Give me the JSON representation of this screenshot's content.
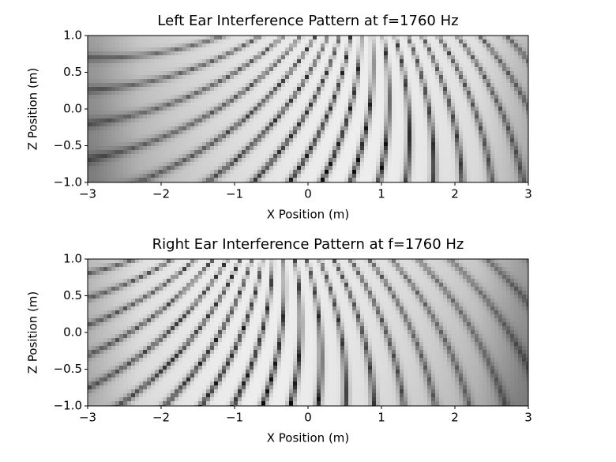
{
  "chart_data": [
    {
      "type": "image",
      "title": "Left Ear Interference Pattern at f=1760 Hz",
      "xlabel": "X Position (m)",
      "ylabel": "Z Position (m)",
      "xlim": [
        -3,
        3
      ],
      "ylim": [
        -1,
        1
      ],
      "xticks": [
        {
          "value": -3,
          "label": "−3"
        },
        {
          "value": -2,
          "label": "−2"
        },
        {
          "value": -1,
          "label": "−1"
        },
        0,
        1,
        2,
        3
      ],
      "yticks": [
        {
          "value": 1,
          "label": "1.0"
        },
        {
          "value": 0.5,
          "label": "0.5"
        },
        {
          "value": 0,
          "label": "0.0"
        },
        {
          "value": -0.5,
          "label": "−0.5"
        },
        {
          "value": -1,
          "label": "−1.0"
        }
      ],
      "colormap": "gray"
    },
    {
      "type": "image",
      "title": "Right Ear Interference Pattern at f=1760 Hz",
      "xlabel": "X Position (m)",
      "ylabel": "Z Position (m)",
      "xlim": [
        -3,
        3
      ],
      "ylim": [
        -1,
        1
      ],
      "xticks": [
        {
          "value": -3,
          "label": "−3"
        },
        {
          "value": -2,
          "label": "−2"
        },
        {
          "value": -1,
          "label": "−1"
        },
        0,
        1,
        2,
        3
      ],
      "yticks": [
        {
          "value": 1,
          "label": "1.0"
        },
        {
          "value": 0.5,
          "label": "0.5"
        },
        {
          "value": 0,
          "label": "0.0"
        },
        {
          "value": -0.5,
          "label": "−0.5"
        },
        {
          "value": -1,
          "label": "−1.0"
        }
      ],
      "colormap": "gray"
    }
  ]
}
